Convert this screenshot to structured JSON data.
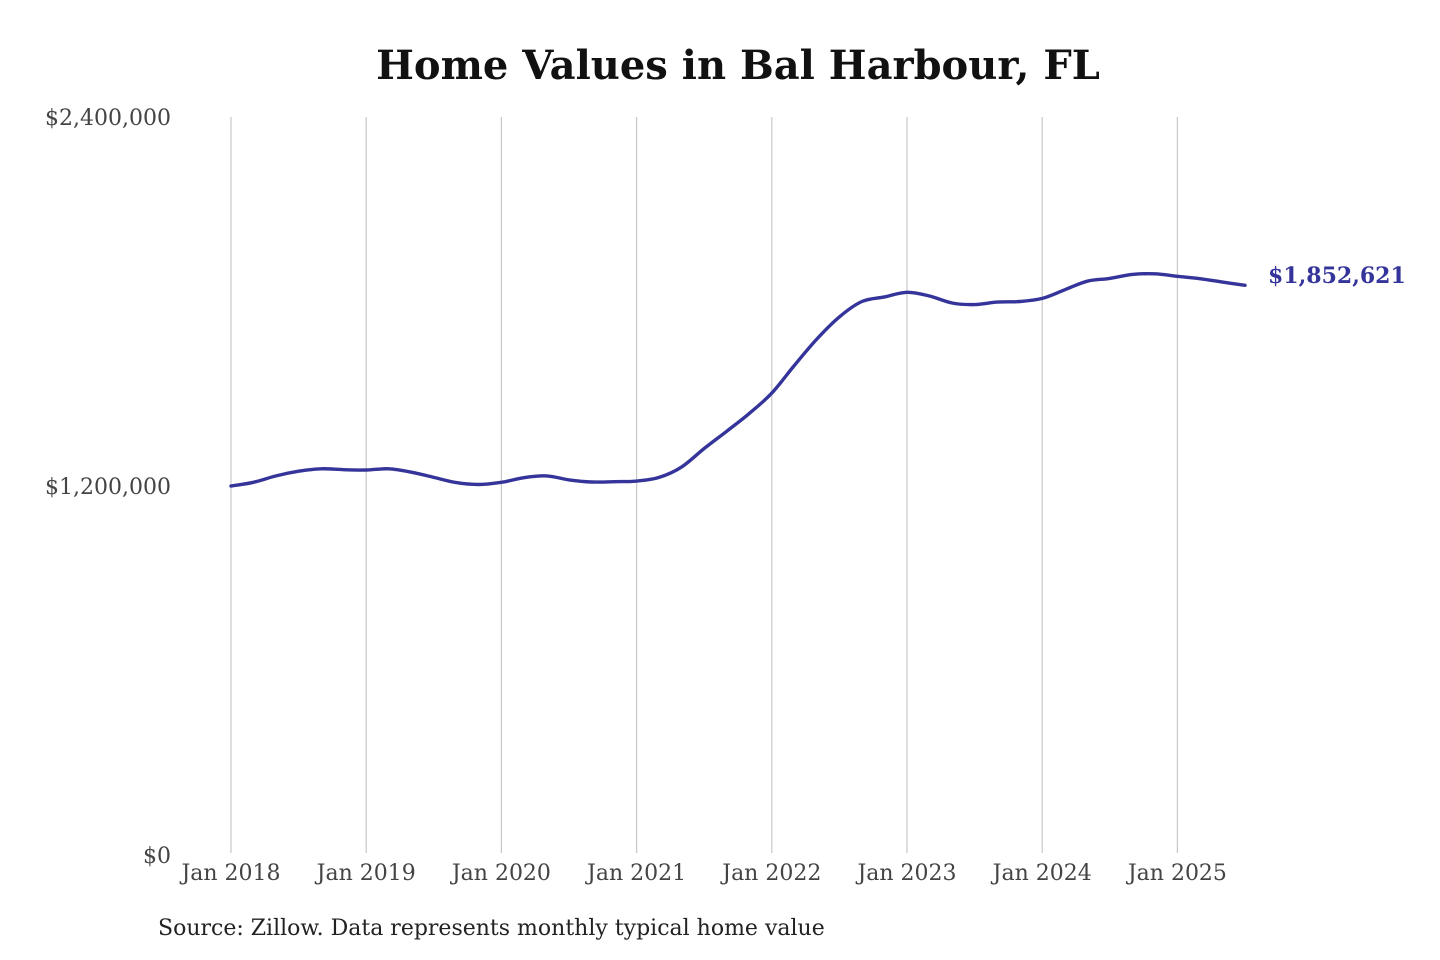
{
  "chart_data": {
    "type": "line",
    "title": "Home Values in Bal Harbour, FL",
    "xlabel": "",
    "ylabel": "",
    "ylim": [
      0,
      2400000
    ],
    "y_ticks": [
      {
        "value": 0,
        "label": "$0"
      },
      {
        "value": 1200000,
        "label": "$1,200,000"
      },
      {
        "value": 2400000,
        "label": "$2,400,000"
      }
    ],
    "x_ticks": [
      {
        "date": "2018-01",
        "label": "Jan 2018"
      },
      {
        "date": "2019-01",
        "label": "Jan 2019"
      },
      {
        "date": "2020-01",
        "label": "Jan 2020"
      },
      {
        "date": "2021-01",
        "label": "Jan 2021"
      },
      {
        "date": "2022-01",
        "label": "Jan 2022"
      },
      {
        "date": "2023-01",
        "label": "Jan 2023"
      },
      {
        "date": "2024-01",
        "label": "Jan 2024"
      },
      {
        "date": "2025-01",
        "label": "Jan 2025"
      }
    ],
    "xlim": [
      "2018-01",
      "2025-07"
    ],
    "grid": "vertical",
    "legend": "none",
    "line_color": "#35349a",
    "series": [
      {
        "x": [
          "2018-01",
          "2018-03",
          "2018-05",
          "2018-07",
          "2018-09",
          "2018-11",
          "2019-01",
          "2019-03",
          "2019-05",
          "2019-07",
          "2019-09",
          "2019-11",
          "2020-01",
          "2020-03",
          "2020-05",
          "2020-07",
          "2020-09",
          "2020-11",
          "2021-01",
          "2021-03",
          "2021-05",
          "2021-07",
          "2021-09",
          "2021-11",
          "2022-01",
          "2022-03",
          "2022-05",
          "2022-07",
          "2022-09",
          "2022-11",
          "2023-01",
          "2023-03",
          "2023-05",
          "2023-07",
          "2023-09",
          "2023-11",
          "2024-01",
          "2024-03",
          "2024-05",
          "2024-07",
          "2024-09",
          "2024-11",
          "2025-01",
          "2025-03",
          "2025-05",
          "2025-07"
        ],
        "values": [
          1200000,
          1212000,
          1233000,
          1248000,
          1256000,
          1253000,
          1252000,
          1256000,
          1245000,
          1228000,
          1211000,
          1205000,
          1212000,
          1227000,
          1233000,
          1220000,
          1213000,
          1214000,
          1216000,
          1228000,
          1262000,
          1322000,
          1378000,
          1436000,
          1502000,
          1592000,
          1678000,
          1750000,
          1800000,
          1815000,
          1830000,
          1818000,
          1795000,
          1790000,
          1798000,
          1800000,
          1810000,
          1838000,
          1866000,
          1875000,
          1888000,
          1890000,
          1882000,
          1874000,
          1863000,
          1852621
        ]
      }
    ],
    "end_label": "$1,852,621"
  },
  "source_note": "Source: Zillow. Data represents monthly typical home value"
}
